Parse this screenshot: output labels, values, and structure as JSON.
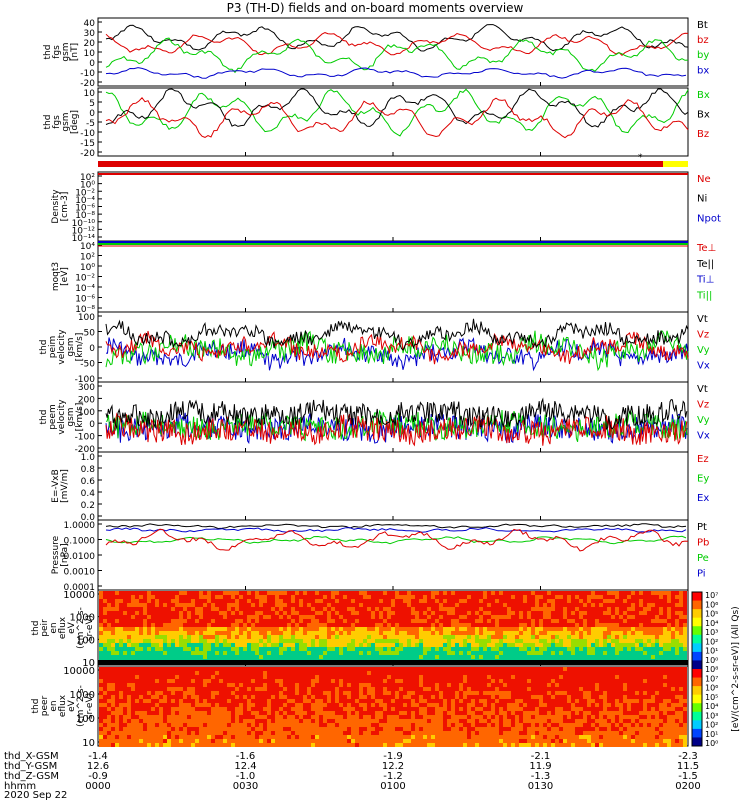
{
  "title": "P3 (TH-D) fields and on-board moments overview",
  "colors": {
    "red": "#dd0000",
    "green": "#00cc00",
    "blue": "#0000cc",
    "black": "#000000",
    "yellow": "#ffff00",
    "darkred": "#aa0000"
  },
  "panels": [
    {
      "ylabel": [
        "thd",
        "fgs",
        "gsm",
        "[nT]"
      ],
      "yticks": [
        "40",
        "30",
        "20",
        "10",
        "0",
        "-10",
        "-20"
      ],
      "ylim": [
        -20,
        40
      ],
      "legend": [
        {
          "text": "Bt",
          "color": "black"
        },
        {
          "text": "bz",
          "color": "red"
        },
        {
          "text": "by",
          "color": "green"
        },
        {
          "text": "bx",
          "color": "blue"
        }
      ]
    },
    {
      "ylabel": [
        "thd",
        "fgs",
        "gsm",
        "[deg]"
      ],
      "yticks": [
        "10",
        "5",
        "0",
        "-5",
        "-10",
        "-15",
        "-20"
      ],
      "ylim": [
        -20,
        10
      ],
      "legend": [
        {
          "text": "Bx",
          "color": "green"
        },
        {
          "text": "Bx",
          "color": "black"
        },
        {
          "text": "Bz",
          "color": "red"
        }
      ]
    },
    {
      "ylabel": [
        "Density",
        "[cm-3]"
      ],
      "yticks": [
        "10²",
        "10⁰",
        "10⁻²",
        "10⁻⁴",
        "10⁻⁶",
        "10⁻⁸",
        "10⁻¹⁰",
        "10⁻¹²",
        "10⁻¹⁴"
      ],
      "legend": [
        {
          "text": "Ne",
          "color": "red"
        },
        {
          "text": "Ni",
          "color": "black"
        },
        {
          "text": "Npot",
          "color": "blue"
        }
      ]
    },
    {
      "ylabel": [
        "moqt3",
        "[eV]"
      ],
      "yticks": [
        "10⁴",
        "10²",
        "10⁰",
        "10⁻²",
        "10⁻⁴",
        "10⁻⁶",
        "10⁻⁸"
      ],
      "legend": [
        {
          "text": "Te⊥",
          "color": "red"
        },
        {
          "text": "Te||",
          "color": "black"
        },
        {
          "text": "Ti⊥",
          "color": "blue"
        },
        {
          "text": "Ti||",
          "color": "green"
        }
      ]
    },
    {
      "ylabel": [
        "thd",
        "peim",
        "velocity",
        "gsm",
        "[km/s]"
      ],
      "yticks": [
        "100",
        "50",
        "0",
        "-50",
        "-100"
      ],
      "ylim": [
        -100,
        100
      ],
      "legend": [
        {
          "text": "Vt",
          "color": "black"
        },
        {
          "text": "Vz",
          "color": "red"
        },
        {
          "text": "Vy",
          "color": "green"
        },
        {
          "text": "Vx",
          "color": "blue"
        }
      ]
    },
    {
      "ylabel": [
        "thd",
        "peem",
        "velocity",
        "gsm",
        "[km/s]"
      ],
      "yticks": [
        "300",
        "200",
        "100",
        "0",
        "-100",
        "-200"
      ],
      "ylim": [
        -200,
        300
      ],
      "legend": [
        {
          "text": "Vt",
          "color": "black"
        },
        {
          "text": "Vz",
          "color": "red"
        },
        {
          "text": "Vy",
          "color": "green"
        },
        {
          "text": "Vx",
          "color": "blue"
        }
      ]
    },
    {
      "ylabel": [
        "E=-VxB",
        "[mV/m]"
      ],
      "yticks": [
        "1.0",
        "0.8",
        "0.6",
        "0.4",
        "0.2",
        "0.0"
      ],
      "ylim": [
        0,
        1
      ],
      "legend": [
        {
          "text": "Ez",
          "color": "red"
        },
        {
          "text": "Ey",
          "color": "green"
        },
        {
          "text": "Ex",
          "color": "blue"
        }
      ]
    },
    {
      "ylabel": [
        "Pressure",
        "[nPa]"
      ],
      "yticks": [
        "1.0000",
        "0.1000",
        "0.0100",
        "0.0010",
        "0.0001"
      ],
      "legend": [
        {
          "text": "Pt",
          "color": "black"
        },
        {
          "text": "Pb",
          "color": "red"
        },
        {
          "text": "Pe",
          "color": "green"
        },
        {
          "text": "Pi",
          "color": "blue"
        }
      ]
    },
    {
      "ylabel": [
        "thd",
        "peir",
        "en",
        "eflux",
        "eV",
        "(cm^2-s-",
        "sr-eV)"
      ],
      "yticks": [
        "10000",
        "1000",
        "100",
        "10"
      ]
    },
    {
      "ylabel": [
        "thd",
        "peer",
        "en",
        "eflux",
        "eV",
        "(cm^2-s-",
        "sr-eV)"
      ],
      "yticks": [
        "10000",
        "1000",
        "100",
        "10"
      ]
    }
  ],
  "colorbar": {
    "ticks": [
      "10⁷",
      "10⁶",
      "10⁵",
      "10⁴",
      "10³",
      "10²",
      "10¹",
      "10⁰",
      "10⁸",
      "10⁷",
      "10⁶",
      "10⁵",
      "10⁴",
      "10³",
      "10²",
      "10¹",
      "10⁰"
    ],
    "label": "[eV/(cm^2-s-sr-eV)] (All Qs)"
  },
  "xaxis": {
    "rows": [
      {
        "label": "thd_X-GSM",
        "values": [
          "-1.4",
          "-1.6",
          "-1.9",
          "-2.1",
          "-2.3"
        ]
      },
      {
        "label": "thd_Y-GSM",
        "values": [
          "12.6",
          "12.4",
          "12.2",
          "11.9",
          "11.5"
        ]
      },
      {
        "label": "thd_Z-GSM",
        "values": [
          "-0.9",
          "-1.0",
          "-1.2",
          "-1.3",
          "-1.5"
        ]
      },
      {
        "label": "hhmm",
        "values": [
          "0000",
          "0030",
          "0100",
          "0130",
          "0200"
        ]
      }
    ],
    "date": "2020 Sep 22"
  },
  "chart_data": {
    "type": "line",
    "x": [
      "0000",
      "0030",
      "0100",
      "0130",
      "0200"
    ],
    "series": [
      {
        "name": "Bt",
        "values": [
          22,
          25,
          28,
          24,
          15
        ]
      },
      {
        "name": "bz",
        "values": [
          18,
          22,
          25,
          20,
          12
        ]
      },
      {
        "name": "by",
        "values": [
          8,
          10,
          12,
          10,
          8
        ]
      },
      {
        "name": "bx",
        "values": [
          -5,
          -4,
          -6,
          -5,
          -8
        ]
      }
    ]
  }
}
